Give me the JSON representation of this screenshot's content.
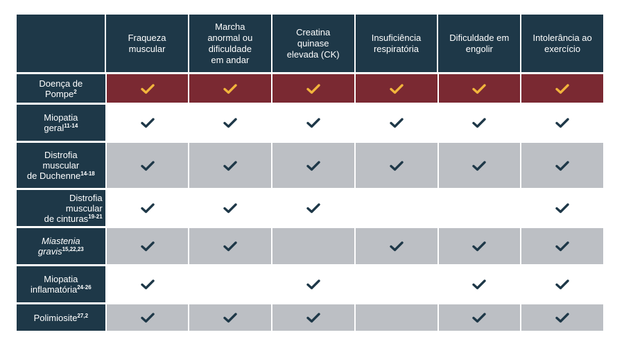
{
  "columns": [
    {
      "label": "Fraqueza muscular",
      "lines": [
        "Fraqueza",
        "muscular"
      ]
    },
    {
      "label": "Marcha anormal ou dificuldade em andar",
      "lines": [
        "Marcha",
        "anormal ou",
        "dificuldade",
        "em andar"
      ]
    },
    {
      "label": "Creatina quinase elevada (CK)",
      "lines": [
        "Creatina",
        "quinase",
        "elevada (CK)"
      ]
    },
    {
      "label": "Insuficiência respiratória",
      "lines": [
        "Insuficiência",
        "respiratória"
      ]
    },
    {
      "label": "Dificuldade em engolir",
      "lines": [
        "Dificuldade em",
        "engolir"
      ]
    },
    {
      "label": "Intolerância ao exercício",
      "lines": [
        "Intolerância ao",
        "exercício"
      ]
    }
  ],
  "rows": [
    {
      "name": "Doença de Pompe",
      "lines": [
        {
          "text": "Doença de"
        },
        {
          "text": "Pompe",
          "sup": "2"
        }
      ],
      "italic": false,
      "align": "center",
      "style": "highlight",
      "checks": [
        true,
        true,
        true,
        true,
        true,
        true
      ]
    },
    {
      "name": "Miopatia geral",
      "lines": [
        {
          "text": "Miopatia"
        },
        {
          "text": "geral",
          "sup": "11-14"
        }
      ],
      "italic": false,
      "align": "center",
      "style": "white",
      "checks": [
        true,
        true,
        true,
        true,
        true,
        true
      ]
    },
    {
      "name": "Distrofia muscular de Duchenne",
      "lines": [
        {
          "text": "Distrofia"
        },
        {
          "text": "muscular"
        },
        {
          "text": "de Duchenne",
          "sup": "14-18"
        }
      ],
      "italic": false,
      "align": "center",
      "style": "gray",
      "checks": [
        true,
        true,
        true,
        true,
        true,
        true
      ]
    },
    {
      "name": "Distrofia muscular de cinturas",
      "lines": [
        {
          "text": "Distrofia"
        },
        {
          "text": "muscular"
        },
        {
          "text": "de cinturas",
          "sup": "19-21"
        }
      ],
      "italic": false,
      "align": "right",
      "style": "white",
      "checks": [
        true,
        true,
        true,
        false,
        false,
        true
      ]
    },
    {
      "name": "Miastenia gravis",
      "lines": [
        {
          "text": "Miastenia"
        },
        {
          "text": "gravis",
          "sup": "15,22,23"
        }
      ],
      "italic": true,
      "align": "center",
      "style": "gray",
      "checks": [
        true,
        true,
        false,
        true,
        true,
        true
      ]
    },
    {
      "name": "Miopatia inflamatória",
      "lines": [
        {
          "text": "Miopatia"
        },
        {
          "text": "inflamatória",
          "sup": "24-26"
        }
      ],
      "italic": false,
      "align": "center",
      "style": "white",
      "checks": [
        true,
        false,
        true,
        false,
        true,
        true
      ]
    },
    {
      "name": "Polimiosite",
      "lines": [
        {
          "text": "Polimiosite",
          "sup": "27,2"
        }
      ],
      "italic": false,
      "align": "center",
      "style": "gray",
      "checks": [
        true,
        true,
        true,
        false,
        true,
        true
      ]
    }
  ],
  "colors": {
    "header_bg": "#1e3848",
    "highlight_bg": "#7a2932",
    "highlight_check": "#f2b43c",
    "gray_bg": "#bcbfc4",
    "white_bg": "#ffffff",
    "check": "#1e3848"
  },
  "icons": {
    "check": "checkmark-icon"
  }
}
